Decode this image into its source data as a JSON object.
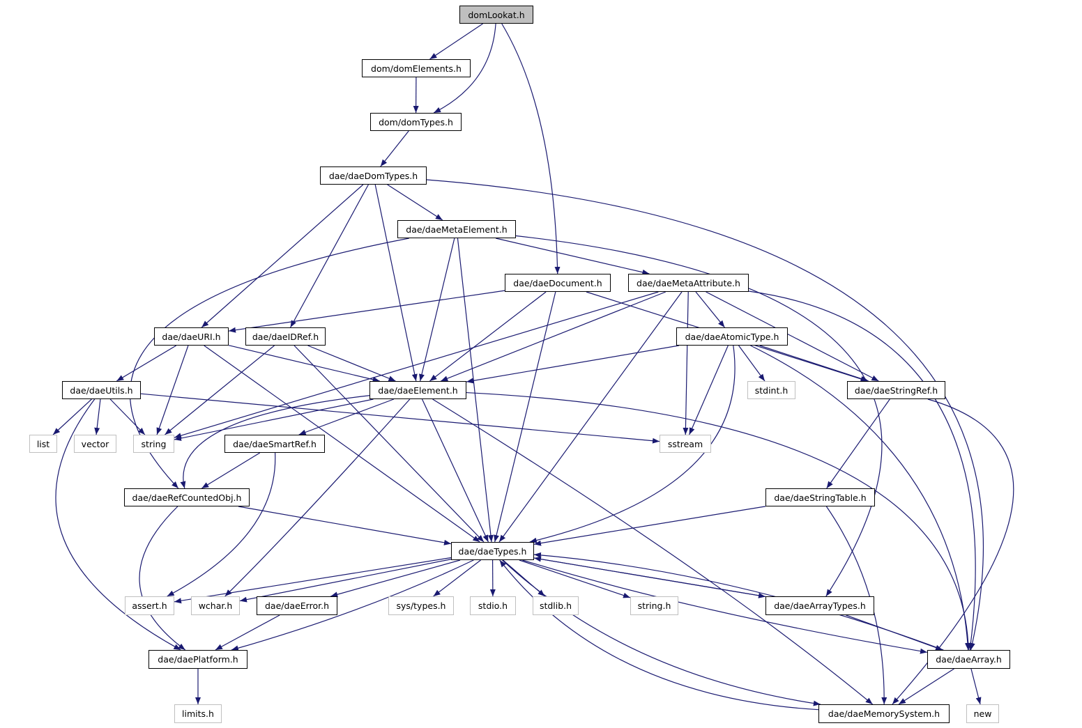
{
  "graph": {
    "edge_color": "#191970",
    "root_fill": "#bfbfbf",
    "external_border": "#bfbfbf",
    "nodes": [
      {
        "id": "domLookat.h",
        "kind": "root"
      },
      {
        "id": "dom/domElements.h",
        "kind": "file"
      },
      {
        "id": "dom/domTypes.h",
        "kind": "file"
      },
      {
        "id": "dae/daeDomTypes.h",
        "kind": "file"
      },
      {
        "id": "dae/daeMetaElement.h",
        "kind": "file"
      },
      {
        "id": "dae/daeDocument.h",
        "kind": "file"
      },
      {
        "id": "dae/daeMetaAttribute.h",
        "kind": "file"
      },
      {
        "id": "dae/daeURI.h",
        "kind": "file"
      },
      {
        "id": "dae/daeIDRef.h",
        "kind": "file"
      },
      {
        "id": "dae/daeAtomicType.h",
        "kind": "file"
      },
      {
        "id": "dae/daeUtils.h",
        "kind": "file"
      },
      {
        "id": "dae/daeElement.h",
        "kind": "file"
      },
      {
        "id": "stdint.h",
        "kind": "ext"
      },
      {
        "id": "dae/daeStringRef.h",
        "kind": "file"
      },
      {
        "id": "list",
        "kind": "ext"
      },
      {
        "id": "vector",
        "kind": "ext"
      },
      {
        "id": "string",
        "kind": "ext"
      },
      {
        "id": "sstream",
        "kind": "ext"
      },
      {
        "id": "dae/daeSmartRef.h",
        "kind": "file"
      },
      {
        "id": "dae/daeRefCountedObj.h",
        "kind": "file"
      },
      {
        "id": "dae/daeStringTable.h",
        "kind": "file"
      },
      {
        "id": "dae/daeTypes.h",
        "kind": "file"
      },
      {
        "id": "assert.h",
        "kind": "ext"
      },
      {
        "id": "wchar.h",
        "kind": "ext"
      },
      {
        "id": "dae/daeError.h",
        "kind": "file"
      },
      {
        "id": "sys/types.h",
        "kind": "ext"
      },
      {
        "id": "stdio.h",
        "kind": "ext"
      },
      {
        "id": "stdlib.h",
        "kind": "ext"
      },
      {
        "id": "string.h",
        "kind": "ext"
      },
      {
        "id": "dae/daeArrayTypes.h",
        "kind": "file"
      },
      {
        "id": "dae/daePlatform.h",
        "kind": "file"
      },
      {
        "id": "dae/daeArray.h",
        "kind": "file"
      },
      {
        "id": "limits.h",
        "kind": "ext"
      },
      {
        "id": "dae/daeMemorySystem.h",
        "kind": "file"
      },
      {
        "id": "new",
        "kind": "ext"
      }
    ],
    "edges": [
      [
        "domLookat.h",
        "dom/domElements.h"
      ],
      [
        "domLookat.h",
        "dom/domTypes.h"
      ],
      [
        "domLookat.h",
        "dae/daeDocument.h"
      ],
      [
        "dom/domElements.h",
        "dom/domTypes.h"
      ],
      [
        "dom/domTypes.h",
        "dae/daeDomTypes.h"
      ],
      [
        "dae/daeDomTypes.h",
        "dae/daeMetaElement.h"
      ],
      [
        "dae/daeDomTypes.h",
        "dae/daeURI.h"
      ],
      [
        "dae/daeDomTypes.h",
        "dae/daeIDRef.h"
      ],
      [
        "dae/daeDomTypes.h",
        "dae/daeElement.h"
      ],
      [
        "dae/daeDomTypes.h",
        "dae/daeArray.h"
      ],
      [
        "dae/daeMetaElement.h",
        "dae/daeRefCountedObj.h"
      ],
      [
        "dae/daeMetaElement.h",
        "dae/daeElement.h"
      ],
      [
        "dae/daeMetaElement.h",
        "dae/daeTypes.h"
      ],
      [
        "dae/daeMetaElement.h",
        "dae/daeMetaAttribute.h"
      ],
      [
        "dae/daeMetaElement.h",
        "dae/daeArrayTypes.h"
      ],
      [
        "dae/daeDocument.h",
        "dae/daeURI.h"
      ],
      [
        "dae/daeDocument.h",
        "dae/daeElement.h"
      ],
      [
        "dae/daeDocument.h",
        "dae/daeTypes.h"
      ],
      [
        "dae/daeDocument.h",
        "dae/daeStringRef.h"
      ],
      [
        "dae/daeMetaAttribute.h",
        "string"
      ],
      [
        "dae/daeMetaAttribute.h",
        "dae/daeElement.h"
      ],
      [
        "dae/daeMetaAttribute.h",
        "dae/daeTypes.h"
      ],
      [
        "dae/daeMetaAttribute.h",
        "sstream"
      ],
      [
        "dae/daeMetaAttribute.h",
        "dae/daeAtomicType.h"
      ],
      [
        "dae/daeMetaAttribute.h",
        "dae/daeStringRef.h"
      ],
      [
        "dae/daeMetaAttribute.h",
        "dae/daeArray.h"
      ],
      [
        "dae/daeAtomicType.h",
        "dae/daeElement.h"
      ],
      [
        "dae/daeAtomicType.h",
        "sstream"
      ],
      [
        "dae/daeAtomicType.h",
        "dae/daeTypes.h"
      ],
      [
        "dae/daeAtomicType.h",
        "stdint.h"
      ],
      [
        "dae/daeAtomicType.h",
        "dae/daeStringRef.h"
      ],
      [
        "dae/daeAtomicType.h",
        "dae/daeArray.h"
      ],
      [
        "dae/daeURI.h",
        "dae/daeUtils.h"
      ],
      [
        "dae/daeURI.h",
        "string"
      ],
      [
        "dae/daeURI.h",
        "dae/daeElement.h"
      ],
      [
        "dae/daeURI.h",
        "dae/daeTypes.h"
      ],
      [
        "dae/daeIDRef.h",
        "string"
      ],
      [
        "dae/daeIDRef.h",
        "dae/daeElement.h"
      ],
      [
        "dae/daeIDRef.h",
        "dae/daeTypes.h"
      ],
      [
        "dae/daeUtils.h",
        "list"
      ],
      [
        "dae/daeUtils.h",
        "vector"
      ],
      [
        "dae/daeUtils.h",
        "string"
      ],
      [
        "dae/daeUtils.h",
        "sstream"
      ],
      [
        "dae/daeUtils.h",
        "dae/daePlatform.h"
      ],
      [
        "dae/daeElement.h",
        "string"
      ],
      [
        "dae/daeElement.h",
        "dae/daeRefCountedObj.h"
      ],
      [
        "dae/daeElement.h",
        "dae/daeSmartRef.h"
      ],
      [
        "dae/daeElement.h",
        "wchar.h"
      ],
      [
        "dae/daeElement.h",
        "dae/daeTypes.h"
      ],
      [
        "dae/daeElement.h",
        "dae/daeMemorySystem.h"
      ],
      [
        "dae/daeElement.h",
        "dae/daeArray.h"
      ],
      [
        "dae/daeSmartRef.h",
        "dae/daeRefCountedObj.h"
      ],
      [
        "dae/daeSmartRef.h",
        "assert.h"
      ],
      [
        "dae/daeRefCountedObj.h",
        "dae/daeTypes.h"
      ],
      [
        "dae/daeRefCountedObj.h",
        "dae/daePlatform.h"
      ],
      [
        "dae/daeStringRef.h",
        "dae/daeStringTable.h"
      ],
      [
        "dae/daeStringRef.h",
        "dae/daeMemorySystem.h"
      ],
      [
        "dae/daeStringTable.h",
        "dae/daeTypes.h"
      ],
      [
        "dae/daeStringTable.h",
        "dae/daeMemorySystem.h"
      ],
      [
        "dae/daeTypes.h",
        "assert.h"
      ],
      [
        "dae/daeTypes.h",
        "wchar.h"
      ],
      [
        "dae/daeTypes.h",
        "dae/daeError.h"
      ],
      [
        "dae/daeTypes.h",
        "dae/daePlatform.h"
      ],
      [
        "dae/daeTypes.h",
        "sys/types.h"
      ],
      [
        "dae/daeTypes.h",
        "stdio.h"
      ],
      [
        "dae/daeTypes.h",
        "stdlib.h"
      ],
      [
        "dae/daeTypes.h",
        "string.h"
      ],
      [
        "dae/daeTypes.h",
        "dae/daeArrayTypes.h"
      ],
      [
        "dae/daeTypes.h",
        "dae/daeArray.h"
      ],
      [
        "dae/daeTypes.h",
        "dae/daeMemorySystem.h"
      ],
      [
        "dae/daeArrayTypes.h",
        "dae/daeTypes.h"
      ],
      [
        "dae/daeArrayTypes.h",
        "dae/daeArray.h"
      ],
      [
        "dae/daeArray.h",
        "dae/daeTypes.h"
      ],
      [
        "dae/daeArray.h",
        "dae/daeMemorySystem.h"
      ],
      [
        "dae/daeArray.h",
        "new"
      ],
      [
        "dae/daeMemorySystem.h",
        "dae/daeTypes.h"
      ],
      [
        "dae/daeError.h",
        "dae/daePlatform.h"
      ],
      [
        "dae/daePlatform.h",
        "limits.h"
      ]
    ]
  }
}
